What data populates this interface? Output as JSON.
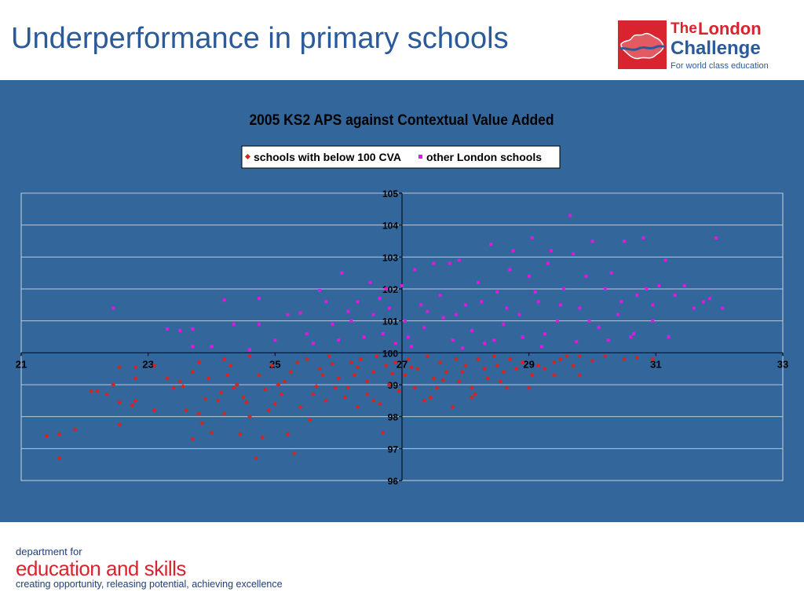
{
  "slide": {
    "title": "Underperformance in primary schools"
  },
  "logo": {
    "the": "The",
    "london": "London",
    "challenge": "Challenge",
    "tagline": "For world class education"
  },
  "footer": {
    "department": "department for",
    "name": "education and skills",
    "tagline": "creating opportunity, releasing potential, achieving excellence"
  },
  "colors": {
    "title": "#2b5a9a",
    "band": "#33669a",
    "plot_bg": "#33669a",
    "gridline": "#b9c8dc",
    "below_series": "#e0201a",
    "other_series": "#e018e0",
    "brand_red": "#d9232e",
    "brand_blue": "#2b5a9a"
  },
  "chart_data": {
    "type": "scatter",
    "title": "2005 KS2 APS against Contextual Value Added",
    "xlabel": "",
    "ylabel": "",
    "xlim": [
      21,
      33
    ],
    "ylim": [
      96,
      105
    ],
    "x_ticks": [
      "21",
      "23",
      "25",
      "27",
      "29",
      "31",
      "33"
    ],
    "y_ticks": [
      "96",
      "97",
      "98",
      "99",
      "100",
      "101",
      "102",
      "103",
      "104",
      "105"
    ],
    "grid": "horizontal",
    "legend_position": "top-center",
    "axes_cross": {
      "x_at_y": 100,
      "y_at_x": 27
    },
    "series": [
      {
        "name": "schools with below 100 CVA",
        "color": "#e0201a",
        "points": [
          [
            21.4,
            97.4
          ],
          [
            21.6,
            97.45
          ],
          [
            21.6,
            96.7
          ],
          [
            21.85,
            97.6
          ],
          [
            22.1,
            98.8
          ],
          [
            22.2,
            98.8
          ],
          [
            22.35,
            98.7
          ],
          [
            22.45,
            99.0
          ],
          [
            22.55,
            97.75
          ],
          [
            22.55,
            99.55
          ],
          [
            22.55,
            98.45
          ],
          [
            22.75,
            98.35
          ],
          [
            22.8,
            99.55
          ],
          [
            22.8,
            99.2
          ],
          [
            22.8,
            98.5
          ],
          [
            23.1,
            98.2
          ],
          [
            23.1,
            99.6
          ],
          [
            23.3,
            99.2
          ],
          [
            23.4,
            98.9
          ],
          [
            23.5,
            99.1
          ],
          [
            23.6,
            98.2
          ],
          [
            23.7,
            99.4
          ],
          [
            23.7,
            97.3
          ],
          [
            23.8,
            99.7
          ],
          [
            23.85,
            97.8
          ],
          [
            23.95,
            99.2
          ],
          [
            24.0,
            97.5
          ],
          [
            24.1,
            98.5
          ],
          [
            24.2,
            99.8
          ],
          [
            24.2,
            98.1
          ],
          [
            24.3,
            99.6
          ],
          [
            24.4,
            99.0
          ],
          [
            24.45,
            97.45
          ],
          [
            24.5,
            98.6
          ],
          [
            24.6,
            98.0
          ],
          [
            24.6,
            99.9
          ],
          [
            24.7,
            96.7
          ],
          [
            24.75,
            99.3
          ],
          [
            24.8,
            97.35
          ],
          [
            24.9,
            98.2
          ],
          [
            24.95,
            99.6
          ],
          [
            25.05,
            99.0
          ],
          [
            25.1,
            98.7
          ],
          [
            25.2,
            97.45
          ],
          [
            25.25,
            99.4
          ],
          [
            25.3,
            96.85
          ],
          [
            25.4,
            98.3
          ],
          [
            25.5,
            99.8
          ],
          [
            25.55,
            97.9
          ],
          [
            25.6,
            98.7
          ],
          [
            25.7,
            99.5
          ],
          [
            25.8,
            98.5
          ],
          [
            25.85,
            99.9
          ],
          [
            25.95,
            98.9
          ],
          [
            26.0,
            99.2
          ],
          [
            26.1,
            98.6
          ],
          [
            26.2,
            99.7
          ],
          [
            26.25,
            99.3
          ],
          [
            26.3,
            98.3
          ],
          [
            26.35,
            99.8
          ],
          [
            26.45,
            98.7
          ],
          [
            26.55,
            99.4
          ],
          [
            26.6,
            99.9
          ],
          [
            26.65,
            98.4
          ],
          [
            26.7,
            97.5
          ],
          [
            26.75,
            99.6
          ],
          [
            26.8,
            99.0
          ],
          [
            26.9,
            99.7
          ],
          [
            26.95,
            98.8
          ],
          [
            27.05,
            99.3
          ],
          [
            27.1,
            99.8
          ],
          [
            27.2,
            98.9
          ],
          [
            27.25,
            99.5
          ],
          [
            27.35,
            98.5
          ],
          [
            27.4,
            99.9
          ],
          [
            27.5,
            99.2
          ],
          [
            27.55,
            98.9
          ],
          [
            27.6,
            99.7
          ],
          [
            27.7,
            99.4
          ],
          [
            27.8,
            98.3
          ],
          [
            27.85,
            99.8
          ],
          [
            27.9,
            99.1
          ],
          [
            28.0,
            99.6
          ],
          [
            28.1,
            98.9
          ],
          [
            28.15,
            98.7
          ],
          [
            28.2,
            99.8
          ],
          [
            28.3,
            99.5
          ],
          [
            28.35,
            99.2
          ],
          [
            28.45,
            99.9
          ],
          [
            28.5,
            99.6
          ],
          [
            28.6,
            99.4
          ],
          [
            28.65,
            98.9
          ],
          [
            28.7,
            99.8
          ],
          [
            28.8,
            99.5
          ],
          [
            28.9,
            99.7
          ],
          [
            29.0,
            98.9
          ],
          [
            29.05,
            99.3
          ],
          [
            29.15,
            99.6
          ],
          [
            29.25,
            99.5
          ],
          [
            29.4,
            99.7
          ],
          [
            29.5,
            99.8
          ],
          [
            29.7,
            99.6
          ],
          [
            29.8,
            99.9
          ],
          [
            30.0,
            99.75
          ],
          [
            30.2,
            99.9
          ],
          [
            30.5,
            99.8
          ],
          [
            30.7,
            99.85
          ],
          [
            30.95,
            99.8
          ],
          [
            29.4,
            99.3
          ],
          [
            29.8,
            99.3
          ],
          [
            29.6,
            99.9
          ],
          [
            28.1,
            98.6
          ],
          [
            24.35,
            98.9
          ],
          [
            24.55,
            98.45
          ],
          [
            24.15,
            98.75
          ],
          [
            23.9,
            98.55
          ],
          [
            23.55,
            98.95
          ],
          [
            25.35,
            99.7
          ],
          [
            25.15,
            99.1
          ],
          [
            25.75,
            99.3
          ],
          [
            26.15,
            98.9
          ],
          [
            26.45,
            99.1
          ],
          [
            26.85,
            99.35
          ],
          [
            25.65,
            98.95
          ],
          [
            25.0,
            98.4
          ],
          [
            24.85,
            98.85
          ],
          [
            24.25,
            99.3
          ],
          [
            23.8,
            98.1
          ],
          [
            27.45,
            98.6
          ],
          [
            27.95,
            99.4
          ],
          [
            28.55,
            99.1
          ],
          [
            26.55,
            98.5
          ],
          [
            26.3,
            99.55
          ],
          [
            25.9,
            99.65
          ],
          [
            27.15,
            99.55
          ],
          [
            27.65,
            99.15
          ]
        ]
      },
      {
        "name": "other London schools",
        "color": "#e018e0",
        "points": [
          [
            22.45,
            101.4
          ],
          [
            23.3,
            100.75
          ],
          [
            23.5,
            100.7
          ],
          [
            23.7,
            100.75
          ],
          [
            23.7,
            100.2
          ],
          [
            24.0,
            100.2
          ],
          [
            24.2,
            101.65
          ],
          [
            24.35,
            100.9
          ],
          [
            24.6,
            100.1
          ],
          [
            24.75,
            101.7
          ],
          [
            24.75,
            100.9
          ],
          [
            25.0,
            100.4
          ],
          [
            25.2,
            101.2
          ],
          [
            25.4,
            101.25
          ],
          [
            25.5,
            100.6
          ],
          [
            25.6,
            100.3
          ],
          [
            25.8,
            101.6
          ],
          [
            25.9,
            100.9
          ],
          [
            26.0,
            100.4
          ],
          [
            26.05,
            102.5
          ],
          [
            26.2,
            101.0
          ],
          [
            26.3,
            101.6
          ],
          [
            26.4,
            100.5
          ],
          [
            26.5,
            102.2
          ],
          [
            26.55,
            101.2
          ],
          [
            26.7,
            100.6
          ],
          [
            26.75,
            102.0
          ],
          [
            26.8,
            101.4
          ],
          [
            26.9,
            100.3
          ],
          [
            27.0,
            102.1
          ],
          [
            27.05,
            101.0
          ],
          [
            27.1,
            100.5
          ],
          [
            27.2,
            102.6
          ],
          [
            27.3,
            101.5
          ],
          [
            27.35,
            100.8
          ],
          [
            27.5,
            102.8
          ],
          [
            27.6,
            101.8
          ],
          [
            27.65,
            101.1
          ],
          [
            27.75,
            102.8
          ],
          [
            27.8,
            100.4
          ],
          [
            27.9,
            102.9
          ],
          [
            28.0,
            101.5
          ],
          [
            28.1,
            100.7
          ],
          [
            28.2,
            102.2
          ],
          [
            28.3,
            100.3
          ],
          [
            28.4,
            103.4
          ],
          [
            28.5,
            101.9
          ],
          [
            28.6,
            100.9
          ],
          [
            28.7,
            102.6
          ],
          [
            28.75,
            103.2
          ],
          [
            28.85,
            101.2
          ],
          [
            28.9,
            100.5
          ],
          [
            29.0,
            102.4
          ],
          [
            29.05,
            103.6
          ],
          [
            29.15,
            101.6
          ],
          [
            29.2,
            100.2
          ],
          [
            29.3,
            102.8
          ],
          [
            29.35,
            103.2
          ],
          [
            29.45,
            101.0
          ],
          [
            29.55,
            102.0
          ],
          [
            29.65,
            104.3
          ],
          [
            29.7,
            103.1
          ],
          [
            29.8,
            101.4
          ],
          [
            29.9,
            102.4
          ],
          [
            30.0,
            103.5
          ],
          [
            30.1,
            100.8
          ],
          [
            30.2,
            102.0
          ],
          [
            30.3,
            102.5
          ],
          [
            30.4,
            101.2
          ],
          [
            30.5,
            103.5
          ],
          [
            30.6,
            100.5
          ],
          [
            30.7,
            101.8
          ],
          [
            30.8,
            103.6
          ],
          [
            30.85,
            102.0
          ],
          [
            30.95,
            101.0
          ],
          [
            31.05,
            102.1
          ],
          [
            31.15,
            102.9
          ],
          [
            31.2,
            100.5
          ],
          [
            31.3,
            101.8
          ],
          [
            31.45,
            102.1
          ],
          [
            31.6,
            101.4
          ],
          [
            31.75,
            101.6
          ],
          [
            31.85,
            101.7
          ],
          [
            31.95,
            103.6
          ],
          [
            32.05,
            101.4
          ],
          [
            25.7,
            101.95
          ],
          [
            26.15,
            101.3
          ],
          [
            26.65,
            101.7
          ],
          [
            27.4,
            101.3
          ],
          [
            27.85,
            101.2
          ],
          [
            28.25,
            101.6
          ],
          [
            28.65,
            101.4
          ],
          [
            29.1,
            101.9
          ],
          [
            29.5,
            101.5
          ],
          [
            29.95,
            101.0
          ],
          [
            30.45,
            101.6
          ],
          [
            30.95,
            101.5
          ],
          [
            27.15,
            100.2
          ],
          [
            27.95,
            100.15
          ],
          [
            28.45,
            100.4
          ],
          [
            29.25,
            100.6
          ],
          [
            29.75,
            100.35
          ],
          [
            30.25,
            100.4
          ],
          [
            30.65,
            100.6
          ]
        ]
      }
    ]
  }
}
